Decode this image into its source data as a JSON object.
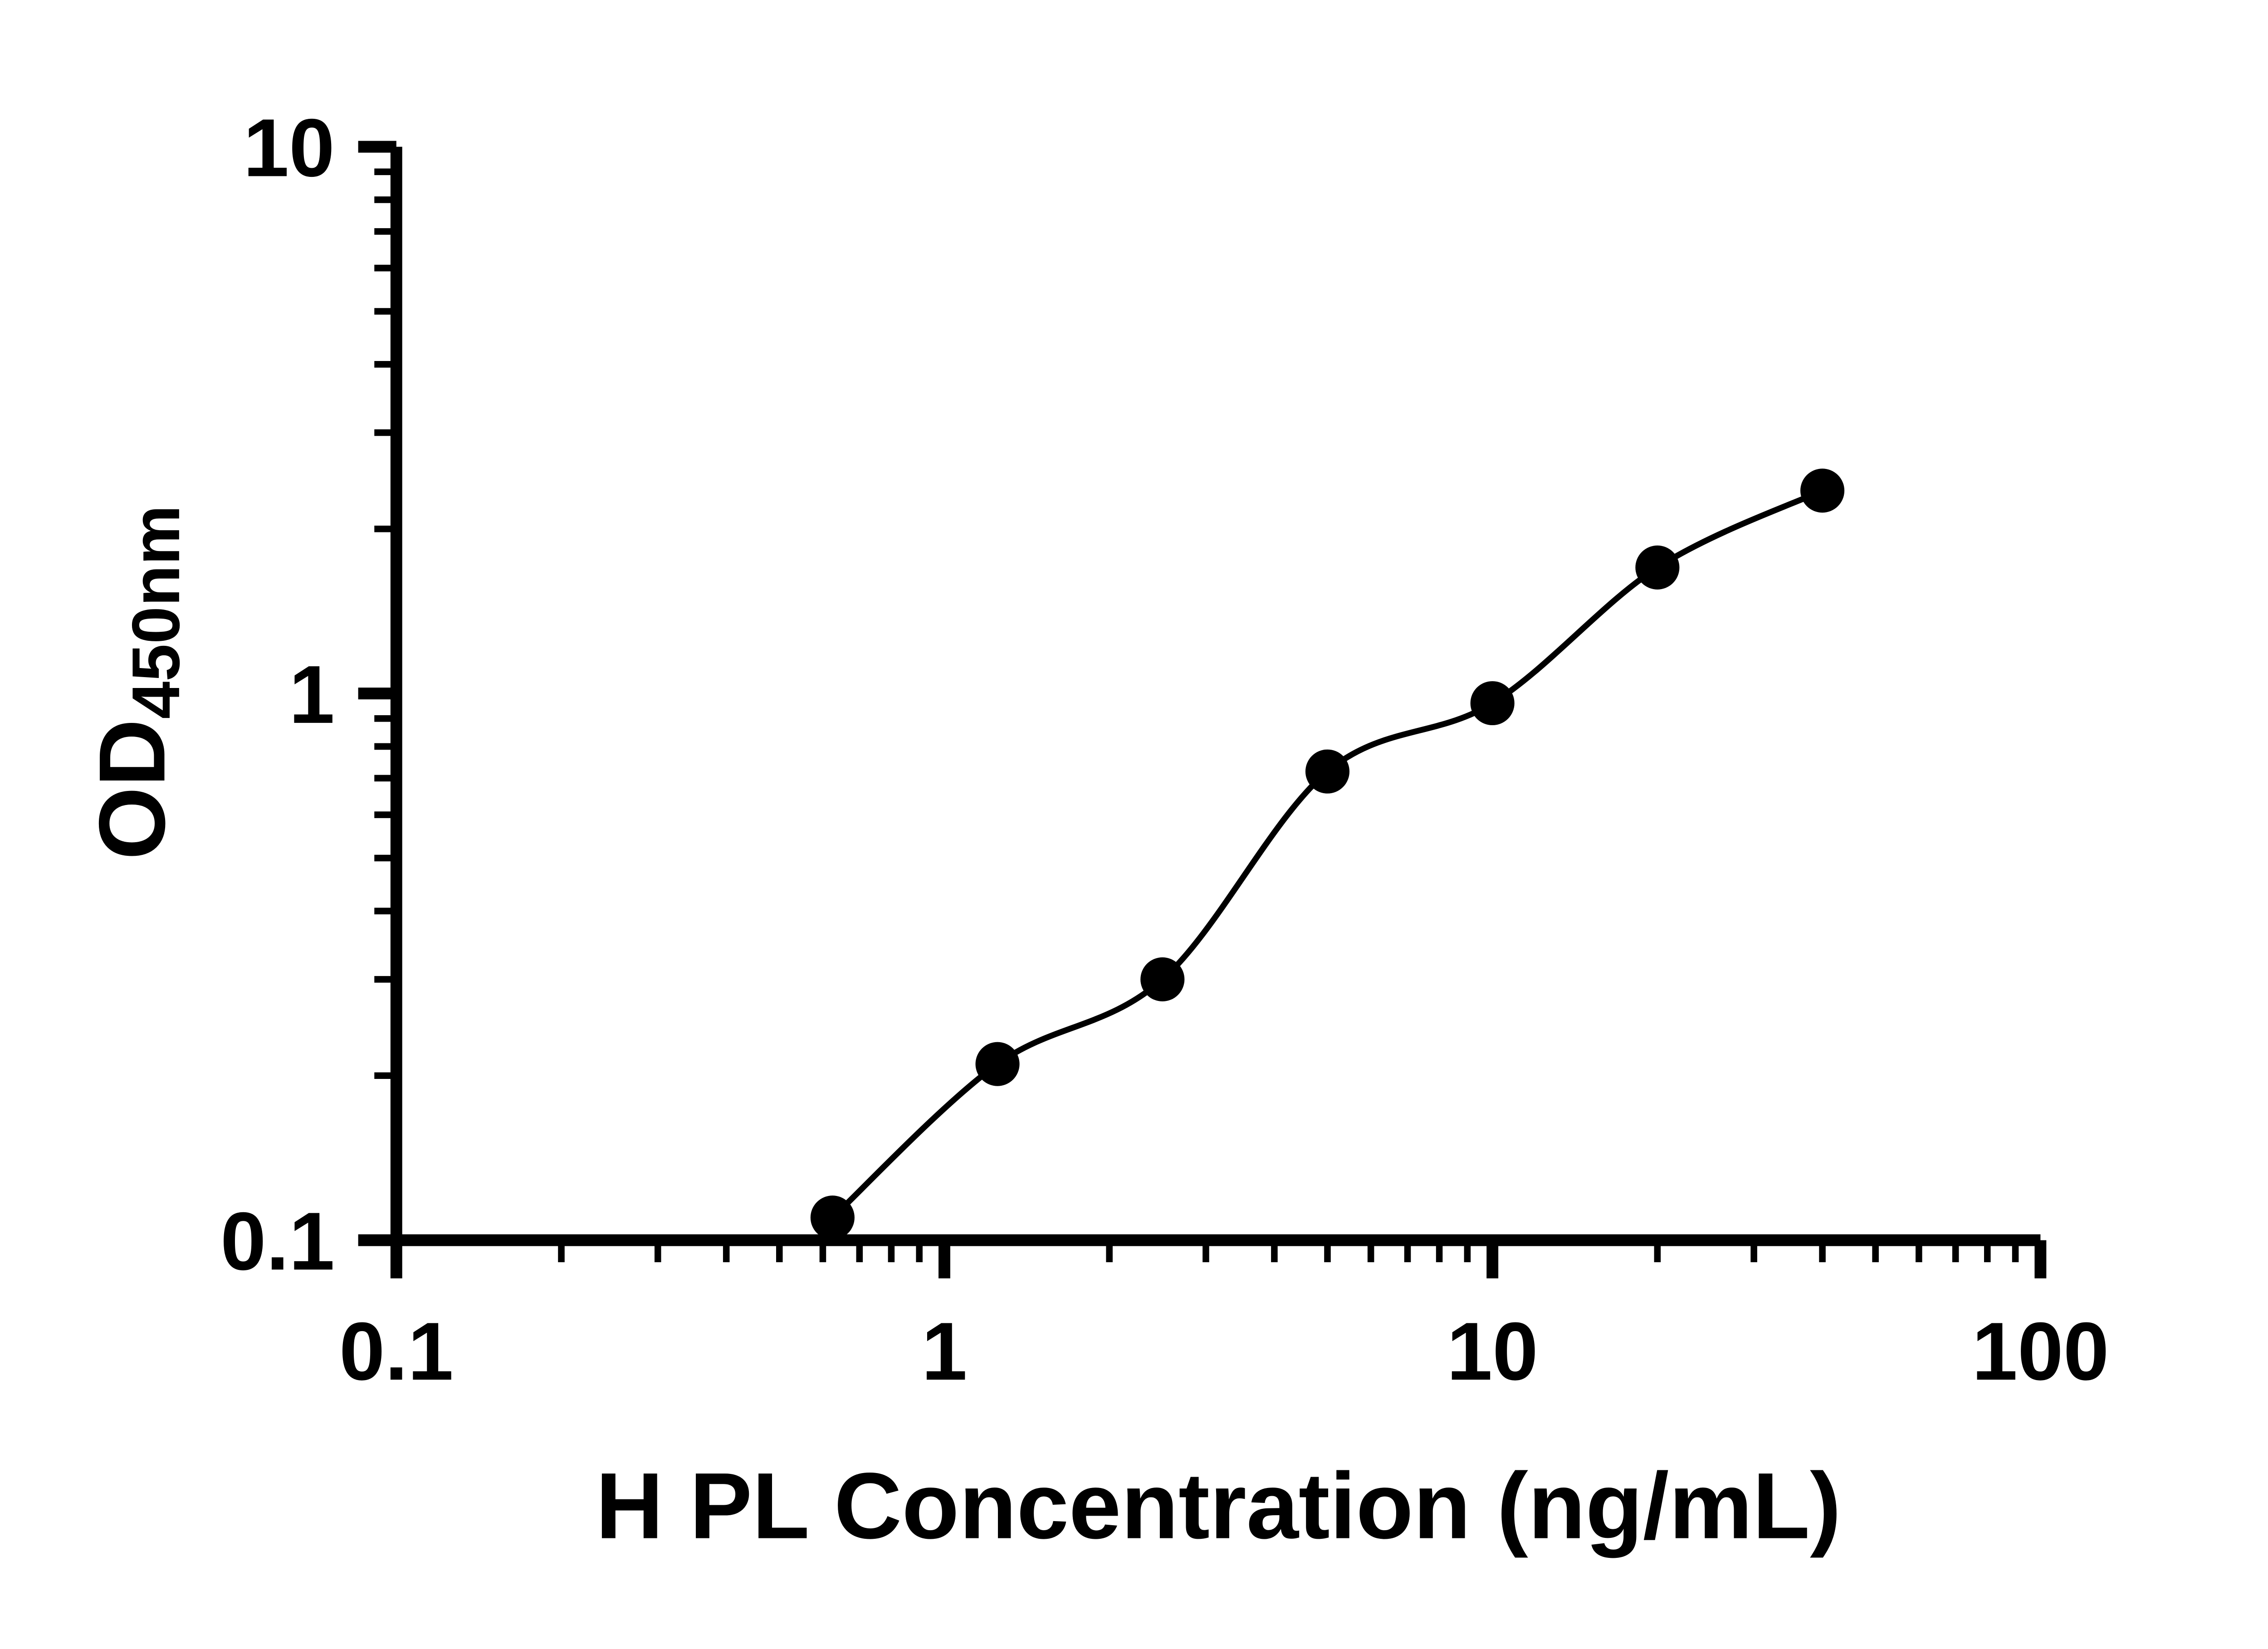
{
  "chart_data": {
    "type": "scatter",
    "title": "",
    "xlabel": "H PL Concentration (ng/mL)",
    "ylabel_main": "OD",
    "ylabel_sub": "450nm",
    "x_scale": "log",
    "y_scale": "log",
    "xlim": [
      0.1,
      100
    ],
    "ylim": [
      0.1,
      10
    ],
    "x_ticks": [
      0.1,
      1,
      10,
      100
    ],
    "x_tick_labels": [
      "0.1",
      "1",
      "10",
      "100"
    ],
    "y_ticks": [
      0.1,
      1,
      10
    ],
    "y_tick_labels": [
      "0.1",
      "1",
      "10"
    ],
    "grid": false,
    "legend": false,
    "series": [
      {
        "x": [
          0.625,
          1.25,
          2.5,
          5,
          10,
          20,
          40
        ],
        "y": [
          0.11,
          0.21,
          0.3,
          0.72,
          0.96,
          1.7,
          2.35
        ],
        "marker": "circle",
        "marker_color": "#000000",
        "line_color": "#000000"
      }
    ]
  },
  "colors": {
    "background": "#ffffff",
    "axis": "#000000",
    "text": "#000000"
  }
}
